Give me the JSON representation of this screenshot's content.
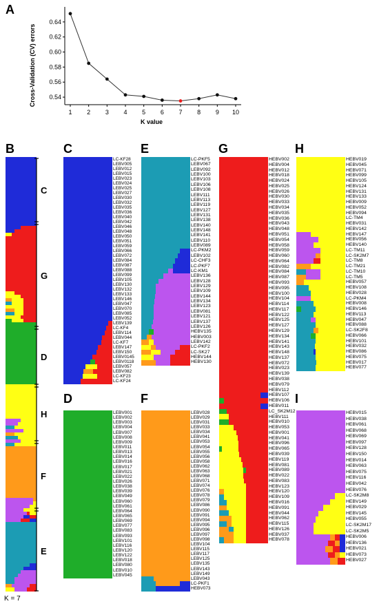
{
  "panel_letters": [
    "A",
    "B",
    "C",
    "D",
    "E",
    "F",
    "G",
    "H",
    "I"
  ],
  "k_label": "K = 7",
  "colors": {
    "blue": "#1f2bd8",
    "red": "#ee1c1c",
    "green": "#1fad2a",
    "yellow": "#ffff14",
    "orange": "#ff9a1a",
    "purple": "#bc55ee",
    "teal": "#1c9cb4"
  },
  "chart_data": [
    {
      "type": "line",
      "title": "",
      "xlabel": "K value",
      "ylabel": "Cross-Validation (CV) errors",
      "x": [
        1,
        2,
        3,
        4,
        5,
        6,
        7,
        8,
        9,
        10
      ],
      "y": [
        0.651,
        0.585,
        0.564,
        0.543,
        0.541,
        0.536,
        0.535,
        0.538,
        0.543,
        0.538
      ],
      "highlight_index": 6,
      "highlight_color": "#ee1c1c",
      "ylim": [
        0.53,
        0.66
      ],
      "yticks": [
        0.54,
        0.56,
        0.58,
        0.6,
        0.62,
        0.64
      ],
      "xticks": [
        1,
        2,
        3,
        4,
        5,
        6,
        7,
        8,
        9,
        10
      ]
    },
    {
      "type": "bar",
      "description_panel": "B",
      "group_labels": [
        "C",
        "G",
        "D",
        "H",
        "F",
        "E"
      ],
      "stacked": true
    }
  ],
  "panels": {
    "C": [
      "LC-KF28",
      "LEBV005",
      "LEBV012",
      "LEBV015",
      "LEBV023",
      "LEBV024",
      "LEBV025",
      "LEBV027",
      "LEBV030",
      "LEBV032",
      "LEBV035",
      "LEBV036",
      "LEBV040",
      "LEBV042",
      "LEBV046",
      "LEBV048",
      "LEBV050",
      "LEBV051",
      "LEBV059",
      "LEBV066",
      "LEBV072",
      "LEBV084",
      "LEBV087",
      "LEBV088",
      "LEBV099",
      "LEBV105",
      "LEBV130",
      "LEBV132",
      "LEBV133",
      "LEBV146",
      "LEBV047",
      "LEBV070",
      "LEBV085",
      "LEBV052",
      "LEBV139",
      "LC-KF4",
      "LEBV114",
      "LEBV044",
      "LC-KF7",
      "LEBV147",
      "LEBV150",
      "LEBV0145",
      "LEBV0118",
      "LEBV057",
      "LEBV082",
      "LC-KF23",
      "LC-KF24"
    ],
    "D": [
      "LEBV001",
      "LEBV002",
      "LEBV003",
      "LEBV004",
      "LEBV007",
      "LEBV008",
      "LEBV009",
      "LEBV011",
      "LEBV013",
      "LEBV014",
      "LEBV016",
      "LEBV017",
      "LEBV021",
      "LEBV022",
      "LEBV026",
      "LEBV038",
      "LEBV039",
      "LEBV049",
      "LEBV060",
      "LEBV061",
      "LEBV064",
      "LEBV065",
      "LEBV069",
      "LEBV077",
      "LEBV083",
      "LEBV093",
      "LEBV101",
      "LEBV116",
      "LEBV120",
      "LEBV122",
      "LEBV018",
      "LEBV080",
      "LEBV010",
      "LEBV045"
    ],
    "E": [
      "LC-PKF5",
      "LEBV067",
      "LEBV092",
      "LEBV100",
      "LEBV103",
      "LEBV106",
      "LEBV108",
      "LEBV111",
      "LEBV113",
      "LEBV119",
      "LEBV127",
      "LEBV131",
      "LEBV138",
      "LEBV140",
      "LEBV148",
      "LEBV141",
      "LEBV110",
      "LEBV089",
      "LC-PKM2",
      "LEBV102",
      "LC-CHF3",
      "LC-PKF7",
      "LC-KM1",
      "LEBV136",
      "LEBV128",
      "LEBV129",
      "LEBV109",
      "LEBV144",
      "LEBV134",
      "LEBV123",
      "LEBV081",
      "LEBV121",
      "LEBV137",
      "LEBV126",
      "HEBV135",
      "HEBV003",
      "LEBV142",
      "LC-PKF2",
      "LC-SK27",
      "HEBV144",
      "HEBV130"
    ],
    "F": [
      "LEBV028",
      "LEBV029",
      "LEBV031",
      "LEBV033",
      "LEBV034",
      "LEBV041",
      "LEBV053",
      "LEBV054",
      "LEBV055",
      "LEBV056",
      "LEBV058",
      "LEBV062",
      "LEBV063",
      "LEBV068",
      "LEBV071",
      "LEBV074",
      "LEBV076",
      "LEBV078",
      "LEBV079",
      "LEBV086",
      "LEBV090",
      "LEBV091",
      "LEBV094",
      "LEBV095",
      "LEBV096",
      "LEBV097",
      "LEBV098",
      "LEBV104",
      "LEBV115",
      "LEBV117",
      "LEBV125",
      "LEBV135",
      "LEBV143",
      "LEBV149",
      "LEBV043",
      "LC-PKF1",
      "HEBV073"
    ],
    "G": [
      "HEBV002",
      "HEBV004",
      "HEBV012",
      "HEBV018",
      "HEBV024",
      "HEBV025",
      "HEBV026",
      "HEBV030",
      "HEBV033",
      "HEBV034",
      "HEBV035",
      "HEBV036",
      "HEBV043",
      "HEBV048",
      "HEBV051",
      "HEBV054",
      "HEBV058",
      "HEBV059",
      "HEBV060",
      "HEBV064",
      "HEBV082",
      "HEBV084",
      "HEBV087",
      "HEBV093",
      "HEBV095",
      "HEBV100",
      "HEBV104",
      "HEBV114",
      "HEBV117",
      "HEBV122",
      "HEBV125",
      "HEBV127",
      "HEBV129",
      "HEBV134",
      "HEBV141",
      "HEBV143",
      "HEBV148",
      "HEBV137",
      "HEBV072",
      "HEBV023",
      "HEBV139",
      "HEBV038",
      "HEBV079",
      "HEBV112",
      "HEBV107",
      "HEBV106",
      "HEBV011",
      "LC_SK2M12",
      "HEBV111",
      "HEBV010",
      "HEBV053",
      "HEBV001",
      "HEBV041",
      "HEBV096",
      "HEBV065",
      "HEBV039",
      "HEBV119",
      "HEBV081",
      "HEBV089",
      "HEBV022",
      "HEBV083",
      "HEBV123",
      "HEBV120",
      "HEBV109",
      "HEBV016",
      "HEBV091",
      "HEBV044",
      "HEBV062",
      "HEBV115",
      "HEBV126",
      "HEBV037",
      "HEBV078"
    ],
    "H": [
      "HEBV019",
      "HEBV045",
      "HEBV071",
      "HEBV099",
      "HEBV105",
      "HEBV124",
      "HEBV131",
      "HEBV133",
      "HEBV009",
      "HEBV052",
      "HEBV094",
      "LC-TM4",
      "HEBV031",
      "HEBV142",
      "HEBV147",
      "HEBV056",
      "HEBV140",
      "LC-TM11",
      "LC-SK2M7",
      "LC-TM8",
      "LC-TM21",
      "LC-TM10",
      "LC-TM5",
      "HEBV057",
      "HEBV108",
      "HEBV028",
      "LC-PKM4",
      "HEBV008",
      "HEBV146",
      "HEBV113",
      "HEBV047",
      "HEBV088",
      "LC-SK2F8",
      "HEBV066",
      "HEBV101",
      "HEBV032",
      "HEBV086",
      "HEBV075",
      "HEBV017",
      "HEBV077"
    ],
    "I": [
      "HEBV015",
      "HEBV038",
      "HEBV061",
      "HEBV068",
      "HEBV069",
      "HEBV097",
      "HEBV128",
      "HEBV150",
      "HEBV014",
      "HEBV063",
      "HEBV075",
      "HEBV116",
      "HEBV042",
      "HEBV076",
      "LC-SK2M8",
      "HEBV149",
      "HEBV029",
      "HEBV145",
      "HEBV055",
      "LC-SK2M17",
      "LC-SK2M5",
      "HEBV006",
      "HEBV136",
      "HEBV021",
      "HEBV073",
      "HEBV027"
    ]
  }
}
